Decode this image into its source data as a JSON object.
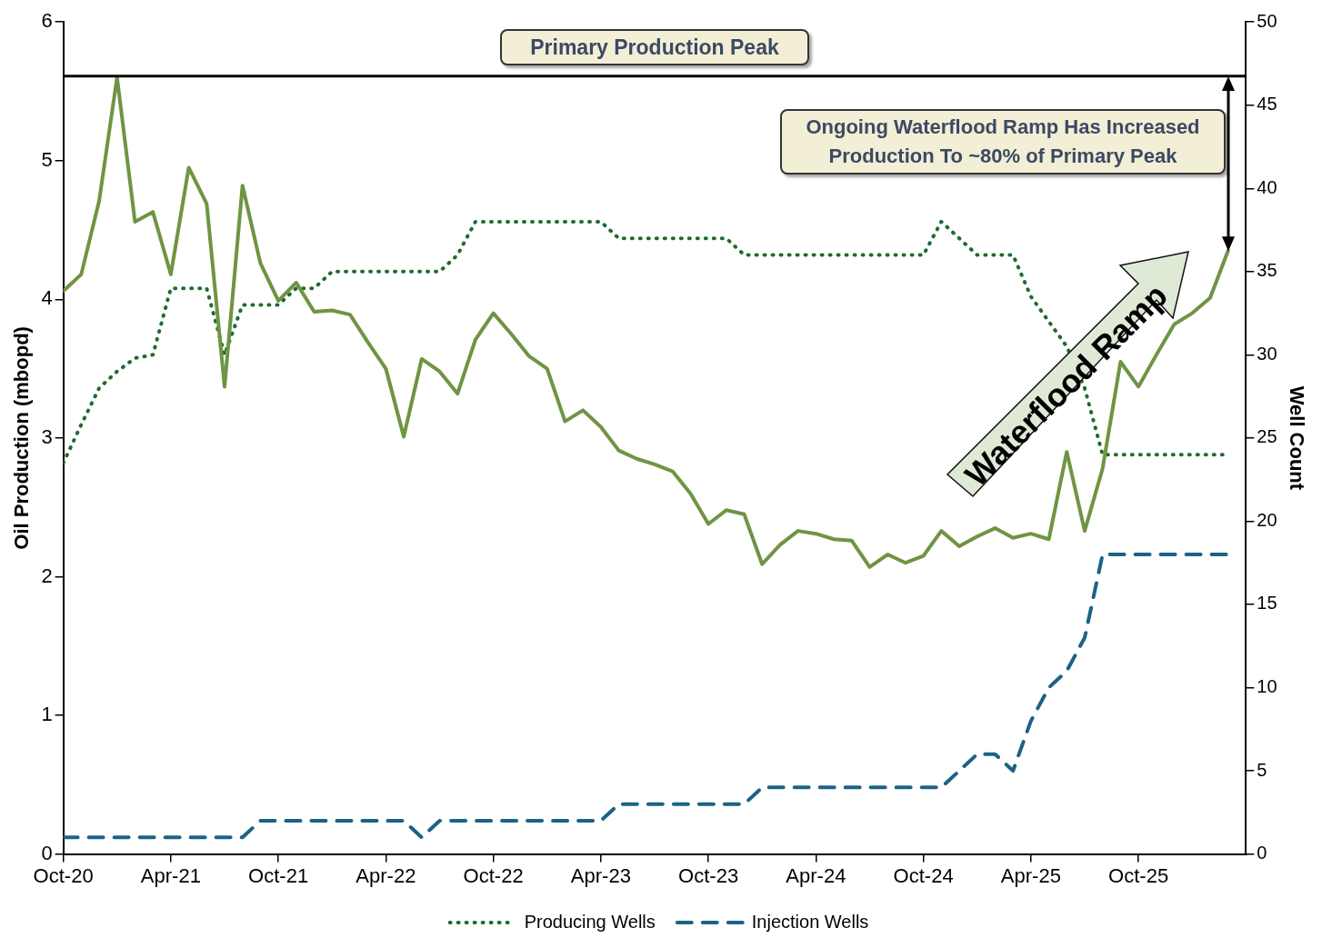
{
  "chart_data": {
    "type": "line",
    "ylabel": "Oil Production (mbopd)",
    "y2label": "Well Count",
    "x": [
      "2020-10",
      "2020-11",
      "2020-12",
      "2021-01",
      "2021-02",
      "2021-03",
      "2021-04",
      "2021-05",
      "2021-06",
      "2021-07",
      "2021-08",
      "2021-09",
      "2021-10",
      "2021-11",
      "2021-12",
      "2022-01",
      "2022-02",
      "2022-03",
      "2022-04",
      "2022-05",
      "2022-06",
      "2022-07",
      "2022-08",
      "2022-09",
      "2022-10",
      "2022-11",
      "2022-12",
      "2023-01",
      "2023-02",
      "2023-03",
      "2023-04",
      "2023-05",
      "2023-06",
      "2023-07",
      "2023-08",
      "2023-09",
      "2023-10",
      "2023-11",
      "2023-12",
      "2024-01",
      "2024-02",
      "2024-03",
      "2024-04",
      "2024-05",
      "2024-06",
      "2024-07",
      "2024-08",
      "2024-09",
      "2024-10",
      "2024-11",
      "2024-12",
      "2025-01",
      "2025-02",
      "2025-03",
      "2025-04",
      "2025-05",
      "2025-06",
      "2025-07",
      "2025-08",
      "2025-09",
      "2025-10",
      "2025-11",
      "2025-12",
      "2026-01",
      "2026-02",
      "2026-03"
    ],
    "series": [
      {
        "color": "#6f9443",
        "line_style": "solid",
        "values": [
          4.06,
          4.18,
          4.71,
          5.6,
          4.56,
          4.63,
          4.18,
          4.95,
          4.69,
          3.37,
          4.82,
          4.26,
          3.99,
          4.12,
          3.91,
          3.92,
          3.89,
          3.69,
          3.5,
          3.01,
          3.57,
          3.48,
          3.32,
          3.71,
          3.9,
          3.75,
          3.59,
          3.5,
          3.12,
          3.2,
          3.08,
          2.91,
          2.85,
          2.81,
          2.76,
          2.6,
          2.38,
          2.48,
          2.45,
          2.09,
          2.23,
          2.33,
          2.31,
          2.27,
          2.26,
          2.07,
          2.16,
          2.1,
          2.15,
          2.33,
          2.22,
          2.29,
          2.35,
          2.28,
          2.31,
          2.27,
          2.9,
          2.33,
          2.78,
          3.55,
          3.37,
          3.6,
          3.82,
          3.9,
          4.01,
          4.35
        ]
      },
      {
        "name": "Producing Wells",
        "color": "#1e6b2e",
        "axis": "y2",
        "line_style": "dotted",
        "values": [
          23.5,
          25.8,
          28,
          29,
          29.8,
          30,
          34,
          34,
          34,
          30,
          33,
          33,
          33,
          34,
          34,
          35,
          35,
          35,
          35,
          35,
          35,
          35,
          36,
          38,
          38,
          38,
          38,
          38,
          38,
          38,
          38,
          37,
          37,
          37,
          37,
          37,
          37,
          37,
          36,
          36,
          36,
          36,
          36,
          36,
          36,
          36,
          36,
          36,
          36,
          38,
          37,
          36,
          36,
          36,
          33.5,
          32,
          30.5,
          28,
          24,
          24,
          24,
          24,
          24,
          24,
          24,
          24
        ]
      },
      {
        "name": "Injection Wells",
        "color": "#1b6385",
        "axis": "y2",
        "line_style": "dashed",
        "values": [
          1,
          1,
          1,
          1,
          1,
          1,
          1,
          1,
          1,
          1,
          1,
          2,
          2,
          2,
          2,
          2,
          2,
          2,
          2,
          2,
          1,
          2,
          2,
          2,
          2,
          2,
          2,
          2,
          2,
          2,
          2,
          3,
          3,
          3,
          3,
          3,
          3,
          3,
          3,
          4,
          4,
          4,
          4,
          4,
          4,
          4,
          4,
          4,
          4,
          4,
          5,
          6,
          6,
          5,
          8,
          10,
          11,
          13,
          18,
          18,
          18,
          18,
          18,
          18,
          18,
          18
        ]
      }
    ],
    "xlim": [
      "2020-10",
      "2026-04"
    ],
    "xticks": [
      {
        "value": "2020-10",
        "label": "Oct-20"
      },
      {
        "value": "2021-04",
        "label": "Apr-21"
      },
      {
        "value": "2021-10",
        "label": "Oct-21"
      },
      {
        "value": "2022-04",
        "label": "Apr-22"
      },
      {
        "value": "2022-10",
        "label": "Oct-22"
      },
      {
        "value": "2023-04",
        "label": "Apr-23"
      },
      {
        "value": "2023-10",
        "label": "Oct-23"
      },
      {
        "value": "2024-04",
        "label": "Apr-24"
      },
      {
        "value": "2024-10",
        "label": "Oct-24"
      },
      {
        "value": "2025-04",
        "label": "Apr-25"
      },
      {
        "value": "2025-10",
        "label": "Oct-25"
      }
    ],
    "ylim": [
      0,
      6
    ],
    "yticks": [
      0,
      1,
      2,
      3,
      4,
      5,
      6
    ],
    "y2lim": [
      0,
      50
    ],
    "y2ticks": [
      0,
      5,
      10,
      15,
      20,
      25,
      30,
      35,
      40,
      45,
      50
    ],
    "ref_lines": [
      {
        "axis": "y",
        "value": 5.61,
        "label": "Primary Production Peak",
        "color": "#000000"
      }
    ],
    "annotations": [
      "Ongoing Waterflood Ramp Has Increased Production To ~80% of Primary Peak",
      "Waterflood Ramp"
    ],
    "marker": "none",
    "grid": false,
    "legend": "bottom"
  }
}
